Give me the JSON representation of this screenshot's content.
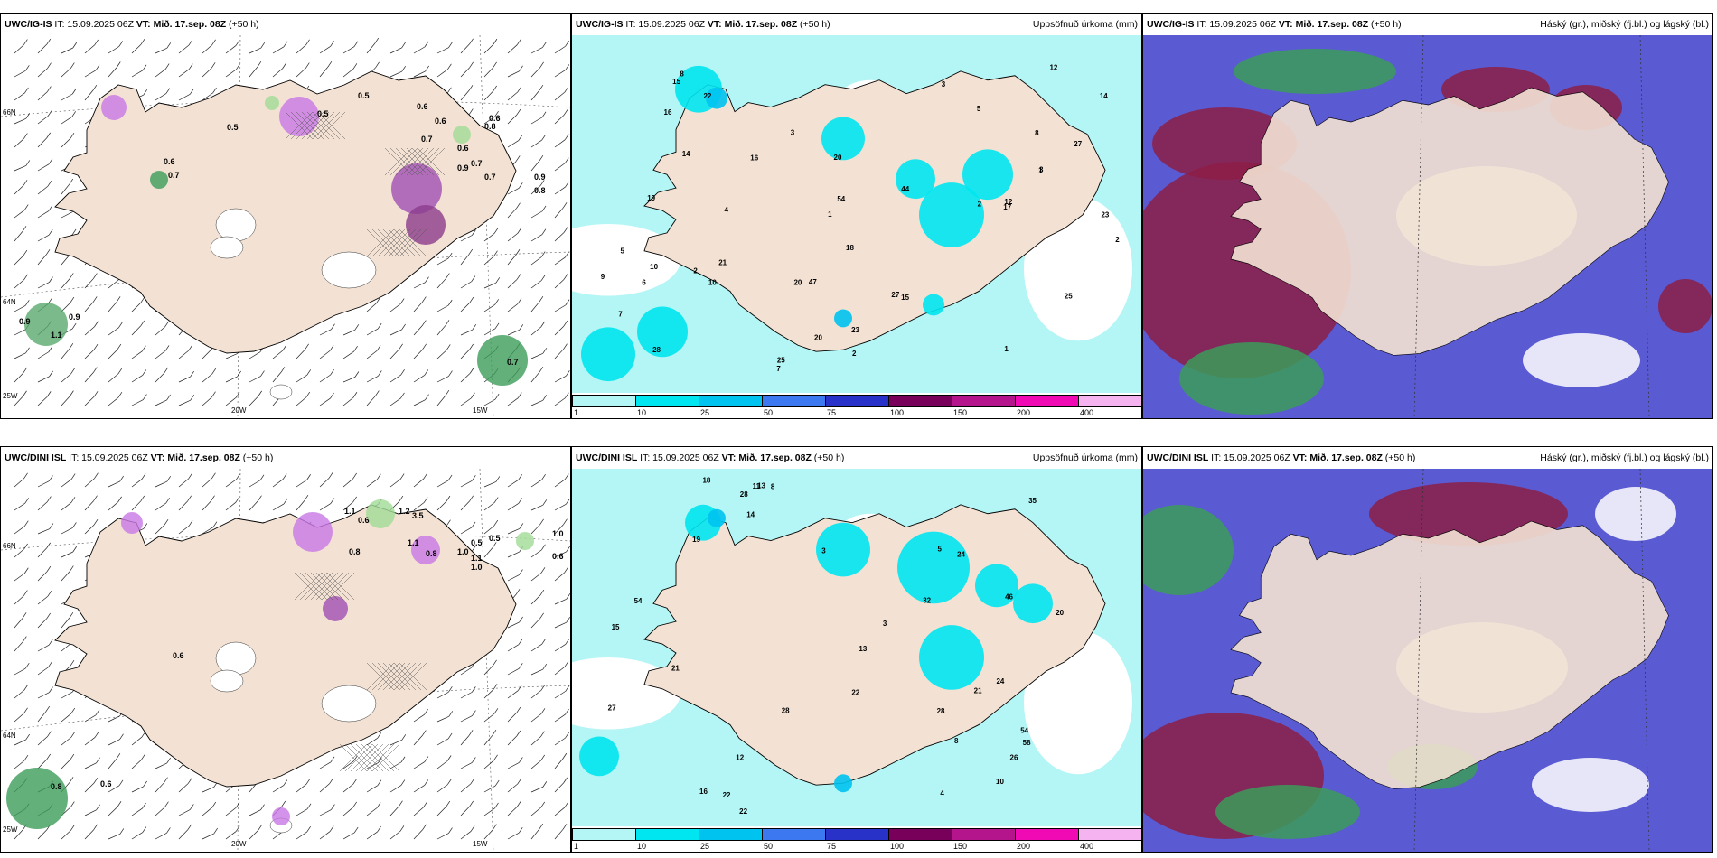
{
  "panels": [
    {
      "model": "UWC/IG-IS",
      "it": "IT: 15.09.2025 06Z",
      "vt": "VT: Mið. 17.sep. 08Z",
      "lead": "(+50 h)",
      "right": "",
      "kind": "wind",
      "lon_labels": [
        "20W",
        "15W"
      ],
      "lat_labels": [
        "66N",
        "64N",
        "25W"
      ],
      "values": [
        "0.5",
        "0.5",
        "0.6",
        "0.5",
        "0.6",
        "0.6",
        "0.8",
        "0.7",
        "0.6",
        "0.9",
        "0.7",
        "0.6",
        "0.7",
        "0.7",
        "0.9",
        "0.8",
        "0.9",
        "1.1",
        "0.9",
        "0.7"
      ]
    },
    {
      "model": "UWC/IG-IS",
      "it": "IT: 15.09.2025 06Z",
      "vt": "VT: Mið. 17.sep. 08Z",
      "lead": "(+50 h)",
      "right": "Uppsöfnuð úrkoma (mm)",
      "kind": "precip",
      "values": [
        "2",
        "1",
        "12",
        "18",
        "23",
        "3",
        "1",
        "2",
        "47",
        "23",
        "10",
        "22",
        "25",
        "27",
        "28",
        "14",
        "15",
        "20",
        "19",
        "44",
        "27",
        "16",
        "21",
        "17",
        "20",
        "25",
        "20",
        "14",
        "12",
        "8",
        "3",
        "2",
        "7",
        "5",
        "10",
        "16",
        "15",
        "5",
        "9",
        "54",
        "3",
        "1",
        "2",
        "4",
        "6",
        "7",
        "8"
      ]
    },
    {
      "model": "UWC/IG-IS",
      "it": "IT: 15.09.2025 06Z",
      "vt": "VT: Mið. 17.sep. 08Z",
      "lead": "(+50 h)",
      "right": "Háský (gr.), miðský (fj.bl.) og lágský (bl.)",
      "kind": "cloud"
    },
    {
      "model": "UWC/DINI ISL",
      "it": "IT: 15.09.2025 06Z",
      "vt": "VT: Mið. 17.sep. 08Z",
      "lead": "(+50 h)",
      "right": "",
      "kind": "wind",
      "lon_labels": [
        "20W",
        "15W"
      ],
      "lat_labels": [
        "66N",
        "64N",
        "25W"
      ],
      "values": [
        "1.1",
        "0.6",
        "1.2",
        "3.5",
        "1.1",
        "0.8",
        "0.5",
        "1.0",
        "0.6",
        "0.5",
        "1.1",
        "1.0",
        "0.8",
        "0.6",
        "1.0",
        "0.8",
        "0.6"
      ]
    },
    {
      "model": "UWC/DINI ISL",
      "it": "IT: 15.09.2025 06Z",
      "vt": "VT: Mið. 17.sep. 08Z",
      "lead": "(+50 h)",
      "right": "Uppsöfnuð úrkoma (mm)",
      "kind": "precip",
      "values": [
        "3",
        "10",
        "46",
        "8",
        "19",
        "28",
        "58",
        "22",
        "32",
        "21",
        "28",
        "27",
        "15",
        "24",
        "18",
        "54",
        "35",
        "22",
        "26",
        "20",
        "16",
        "13",
        "22",
        "24",
        "21",
        "28",
        "12",
        "8",
        "11",
        "14",
        "13",
        "5",
        "54",
        "3",
        "4"
      ]
    },
    {
      "model": "UWC/DINI ISL",
      "it": "IT: 15.09.2025 06Z",
      "vt": "VT: Mið. 17.sep. 08Z",
      "lead": "(+50 h)",
      "right": "Háský (gr.), miðský (fj.bl.) og lágský (bl.)",
      "kind": "cloud"
    }
  ],
  "colorbar": {
    "ticks": [
      "1",
      "10",
      "25",
      "50",
      "75",
      "100",
      "150",
      "200",
      "400"
    ],
    "colors": [
      "#b4f5f5",
      "#00e6f0",
      "#00c3f0",
      "#3c78f0",
      "#2832c8",
      "#78005a",
      "#b4148c",
      "#f00ab4",
      "#f5b4f0"
    ]
  },
  "colors": {
    "land": "#f3e2d3",
    "sea_precip": "#b4f5f5",
    "cloud_high": "#5a5ad2",
    "cloud_mid": "#8c1e46",
    "cloud_low": "#3c9c5a"
  }
}
